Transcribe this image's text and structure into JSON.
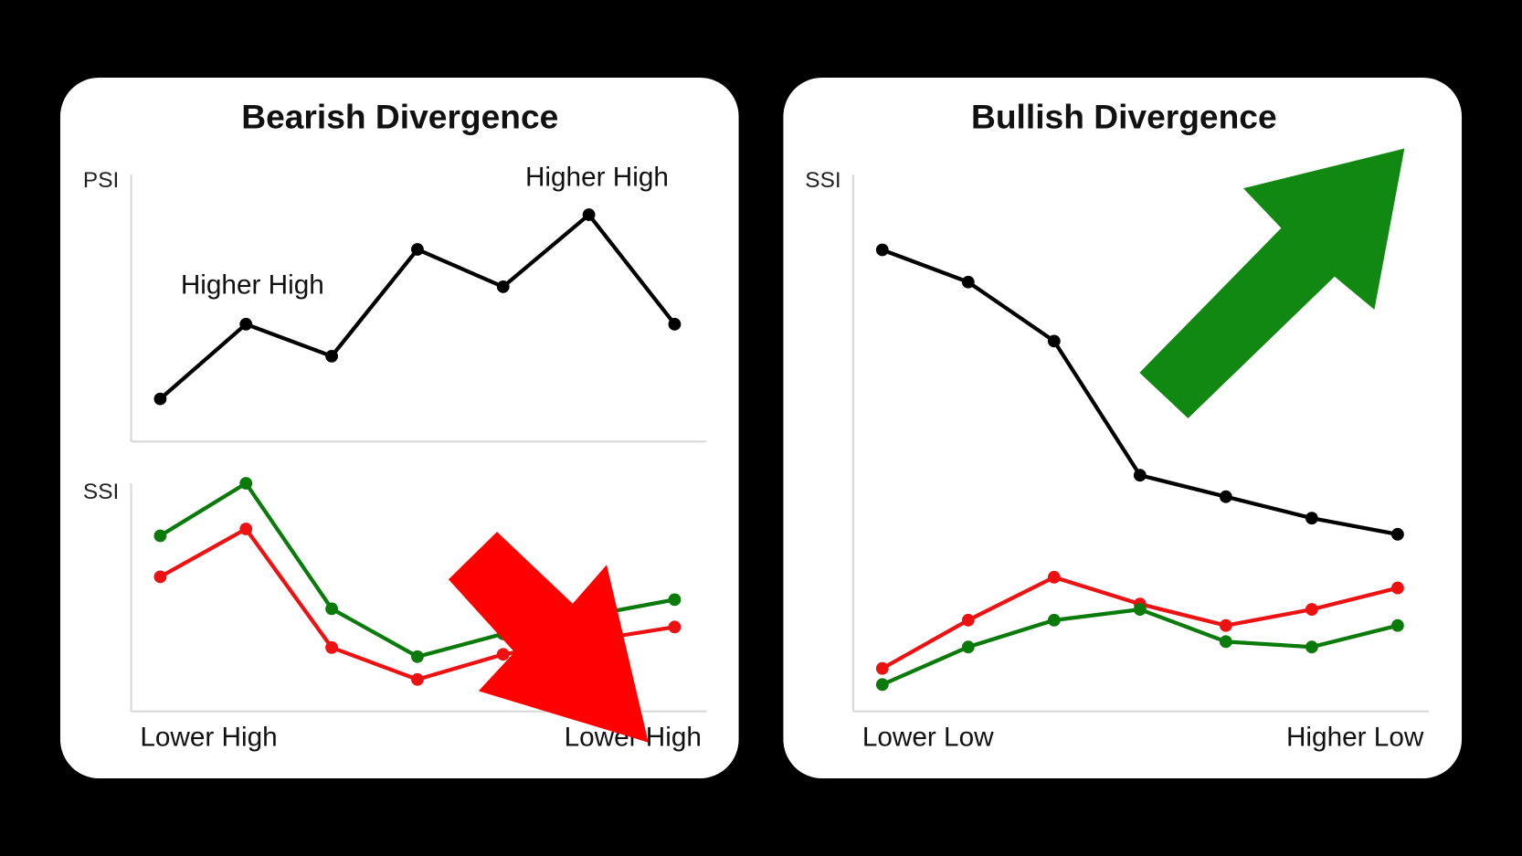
{
  "chart_data": [
    {
      "type": "line",
      "title": "Bearish Divergence",
      "ylabel": "PSI",
      "annotations": [
        "Higher High",
        "Higher High"
      ],
      "ylim": [
        0,
        100
      ],
      "series": [
        {
          "color": "#000000",
          "values": [
            16,
            44,
            32,
            72,
            58,
            85,
            44
          ]
        }
      ]
    },
    {
      "type": "line",
      "ylabel": "SSI",
      "annotations": [
        "Lower High",
        "Lower High"
      ],
      "ylim": [
        0,
        100
      ],
      "series": [
        {
          "color": "#0a7a0a",
          "values": [
            77,
            100,
            45,
            24,
            34,
            42,
            49
          ]
        },
        {
          "color": "#ee1111",
          "values": [
            59,
            80,
            28,
            14,
            25,
            31,
            37
          ]
        }
      ]
    },
    {
      "type": "line",
      "title": "Bullish Divergence",
      "ylabel": "SSI",
      "annotations": [
        "Lower Low",
        "Higher Low"
      ],
      "ylim": [
        0,
        100
      ],
      "series": [
        {
          "color": "#000000",
          "values": [
            86,
            80,
            69,
            44,
            40,
            36,
            33
          ]
        },
        {
          "color": "#ee1111",
          "values": [
            8,
            17,
            25,
            20,
            16,
            19,
            23
          ]
        },
        {
          "color": "#0a7a0a",
          "values": [
            5,
            12,
            17,
            19,
            13,
            12,
            16
          ]
        }
      ]
    }
  ]
}
